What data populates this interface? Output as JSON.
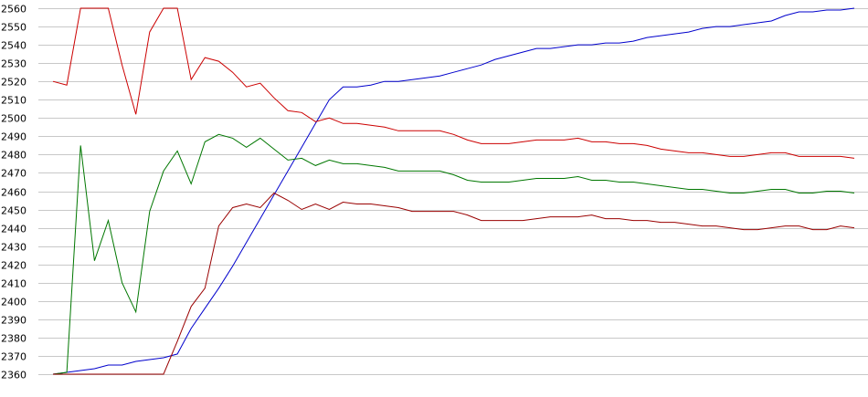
{
  "chart_data": {
    "type": "line",
    "title": "",
    "xlabel": "",
    "ylabel": "",
    "ylim": [
      2360,
      2560
    ],
    "yticks": [
      2360,
      2370,
      2380,
      2390,
      2400,
      2410,
      2420,
      2430,
      2440,
      2450,
      2460,
      2470,
      2480,
      2490,
      2500,
      2510,
      2520,
      2530,
      2540,
      2550,
      2560
    ],
    "grid": "horizontal",
    "legend": "none",
    "x": [
      0,
      1,
      2,
      3,
      4,
      5,
      6,
      7,
      8,
      9,
      10,
      11,
      12,
      13,
      14,
      15,
      16,
      17,
      18,
      19,
      20,
      21,
      22,
      23,
      24,
      25,
      26,
      27,
      28,
      29,
      30,
      31,
      32,
      33,
      34,
      35,
      36,
      37,
      38,
      39,
      40,
      41,
      42,
      43,
      44,
      45,
      46,
      47,
      48,
      49,
      50,
      51,
      52,
      53,
      54,
      55,
      56,
      57,
      58
    ],
    "series": [
      {
        "color": "#0000cc",
        "values": [
          2360,
          2361,
          2362,
          2363,
          2365,
          2365,
          2367,
          2368,
          2369,
          2371,
          2385,
          2396,
          2407,
          2419,
          2432,
          2445,
          2458,
          2471,
          2484,
          2497,
          2510,
          2517,
          2517,
          2518,
          2520,
          2520,
          2521,
          2522,
          2523,
          2525,
          2527,
          2529,
          2532,
          2534,
          2536,
          2538,
          2538,
          2539,
          2540,
          2540,
          2541,
          2541,
          2542,
          2544,
          2545,
          2546,
          2547,
          2549,
          2550,
          2550,
          2551,
          2552,
          2553,
          2556,
          2558,
          2558,
          2559,
          2559,
          2560
        ]
      },
      {
        "color": "#cc0000",
        "values": [
          2520,
          2518,
          2560,
          2560,
          2560,
          2529,
          2502,
          2547,
          2560,
          2560,
          2521,
          2533,
          2531,
          2525,
          2517,
          2519,
          2511,
          2504,
          2503,
          2498,
          2500,
          2497,
          2497,
          2496,
          2495,
          2493,
          2493,
          2493,
          2493,
          2491,
          2488,
          2486,
          2486,
          2486,
          2487,
          2488,
          2488,
          2488,
          2489,
          2487,
          2487,
          2486,
          2486,
          2485,
          2483,
          2482,
          2481,
          2481,
          2480,
          2479,
          2479,
          2480,
          2481,
          2481,
          2479,
          2479,
          2479,
          2479,
          2478
        ]
      },
      {
        "color": "#007700",
        "values": [
          2360,
          2361,
          2485,
          2422,
          2444,
          2410,
          2394,
          2449,
          2471,
          2482,
          2464,
          2487,
          2491,
          2489,
          2484,
          2489,
          2483,
          2477,
          2478,
          2474,
          2477,
          2475,
          2475,
          2474,
          2473,
          2471,
          2471,
          2471,
          2471,
          2469,
          2466,
          2465,
          2465,
          2465,
          2466,
          2467,
          2467,
          2467,
          2468,
          2466,
          2466,
          2465,
          2465,
          2464,
          2463,
          2462,
          2461,
          2461,
          2460,
          2459,
          2459,
          2460,
          2461,
          2461,
          2459,
          2459,
          2460,
          2460,
          2459
        ]
      },
      {
        "color": "#990000",
        "values": [
          2360,
          2360,
          2360,
          2360,
          2360,
          2360,
          2360,
          2360,
          2360,
          2378,
          2397,
          2407,
          2441,
          2451,
          2453,
          2451,
          2459,
          2455,
          2450,
          2453,
          2450,
          2454,
          2453,
          2453,
          2452,
          2451,
          2449,
          2449,
          2449,
          2449,
          2447,
          2444,
          2444,
          2444,
          2444,
          2445,
          2446,
          2446,
          2446,
          2447,
          2445,
          2445,
          2444,
          2444,
          2443,
          2443,
          2442,
          2441,
          2441,
          2440,
          2439,
          2439,
          2440,
          2441,
          2441,
          2439,
          2439,
          2441,
          2440
        ]
      }
    ]
  }
}
